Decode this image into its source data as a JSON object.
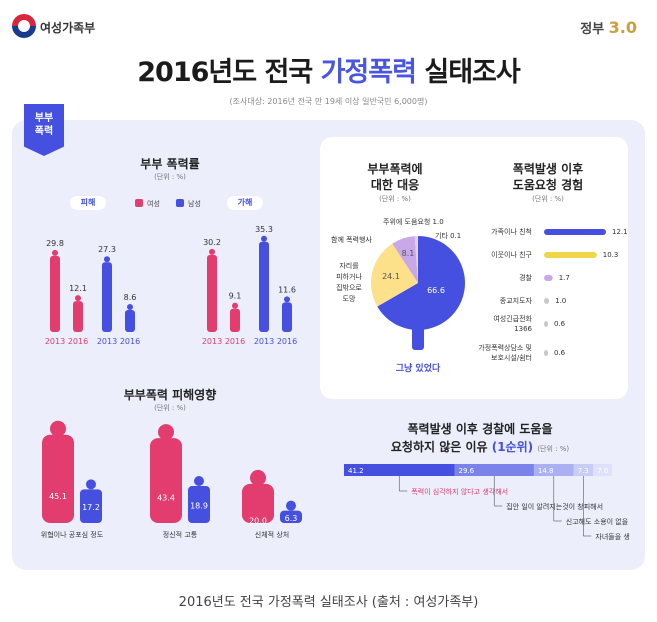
{
  "header": {
    "ministry": "여성가족부",
    "gov_label": "정부",
    "gov_version": "3.0",
    "title_prefix": "2016년도 전국 ",
    "title_highlight": "가정폭력",
    "title_suffix": " 실태조사",
    "subtitle": "(조사대상: 2016년 전국 만 19세 이상 일반국민 6,000명)"
  },
  "tag": {
    "line1": "부부",
    "line2": "폭력"
  },
  "colors": {
    "female": "#e23d6e",
    "male": "#4550e0",
    "accent": "#4550e0",
    "pie_yellow": "#fde08a",
    "pie_purple": "#c9a8e8",
    "gray": "#c8c8c8"
  },
  "violence_rate": {
    "title": "부부 폭력률",
    "unit": "(단위 : %)",
    "legend_female": "여성",
    "legend_male": "남성",
    "victim_label": "피해",
    "perpetrator_label": "가해"
  },
  "response": {
    "title_line1": "부부폭력에",
    "title_line2": "대한 대응",
    "unit": "(단위 : %)",
    "label_sat_still": "그냥 있었다",
    "label_escape": "자리를\n피하거나\n집밖으로\n도망",
    "label_counter": "함께 폭력행사",
    "label_help": "주위에 도움요청 1.0",
    "label_other": "기타 0.1"
  },
  "help_seeking": {
    "title_line1": "폭력발생 이후",
    "title_line2": "도움요청 경험",
    "unit": "(단위 : %)"
  },
  "damage": {
    "title": "부부폭력 피해영향",
    "unit": "(단위 : %)"
  },
  "reasons": {
    "title_line1": "폭력발생 이후 경찰에 도움을",
    "title_line2_a": "요청하지 않은 이유 ",
    "title_line2_b": "(1순위)",
    "unit": "(단위 : %)",
    "labels": [
      "폭력이 심각하지 않다고 생각해서",
      "집안 일이 알려지는것이 창피해서",
      "신고해도 소용이 없을 것 같아서",
      "자녀들을 생각해서 / 기타"
    ]
  },
  "caption": "2016년도 전국 가정폭력 실태조사 (출처 : 여성가족부)",
  "chart_data": [
    {
      "type": "bar",
      "title": "부부 폭력률 - 피해",
      "categories": [
        "2013",
        "2016"
      ],
      "series": [
        {
          "name": "여성",
          "values": [
            29.8,
            12.1
          ]
        },
        {
          "name": "남성",
          "values": [
            27.3,
            8.6
          ]
        }
      ]
    },
    {
      "type": "bar",
      "title": "부부 폭력률 - 가해",
      "categories": [
        "2013",
        "2016"
      ],
      "series": [
        {
          "name": "여성",
          "values": [
            30.2,
            9.1
          ]
        },
        {
          "name": "남성",
          "values": [
            35.3,
            11.6
          ]
        }
      ]
    },
    {
      "type": "pie",
      "title": "부부폭력에 대한 대응",
      "categories": [
        "그냥 있었다",
        "자리를 피하거나 집밖으로 도망",
        "함께 폭력행사",
        "주위에 도움요청",
        "기타"
      ],
      "values": [
        66.6,
        24.1,
        8.1,
        1.0,
        0.1
      ]
    },
    {
      "type": "bar",
      "title": "폭력발생 이후 도움요청 경험",
      "categories": [
        "가족이나 친척",
        "이웃이나 친구",
        "경찰",
        "종교지도자",
        "여성긴급전화 1366",
        "가정폭력상담소 및 보호시설/쉼터"
      ],
      "values": [
        12.1,
        10.3,
        1.7,
        1.0,
        0.6,
        0.6
      ]
    },
    {
      "type": "bar",
      "title": "부부폭력 피해영향",
      "categories": [
        "위협이나 공포심 정도",
        "정신적 고통",
        "신체적 상처"
      ],
      "series": [
        {
          "name": "여성",
          "values": [
            45.1,
            43.4,
            20.0
          ]
        },
        {
          "name": "남성",
          "values": [
            17.2,
            18.9,
            6.3
          ]
        }
      ]
    },
    {
      "type": "bar",
      "title": "폭력발생 이후 경찰에 도움을 요청하지 않은 이유 (1순위)",
      "categories": [
        "폭력이 심각하지 않다고 생각해서",
        "집안 일이 알려지는것이 창피해서",
        "신고해도 소용이 없을 것 같아서",
        "자녀들을 생각해서",
        "기타"
      ],
      "values": [
        41.2,
        29.6,
        14.8,
        7.3,
        7.0
      ]
    }
  ]
}
